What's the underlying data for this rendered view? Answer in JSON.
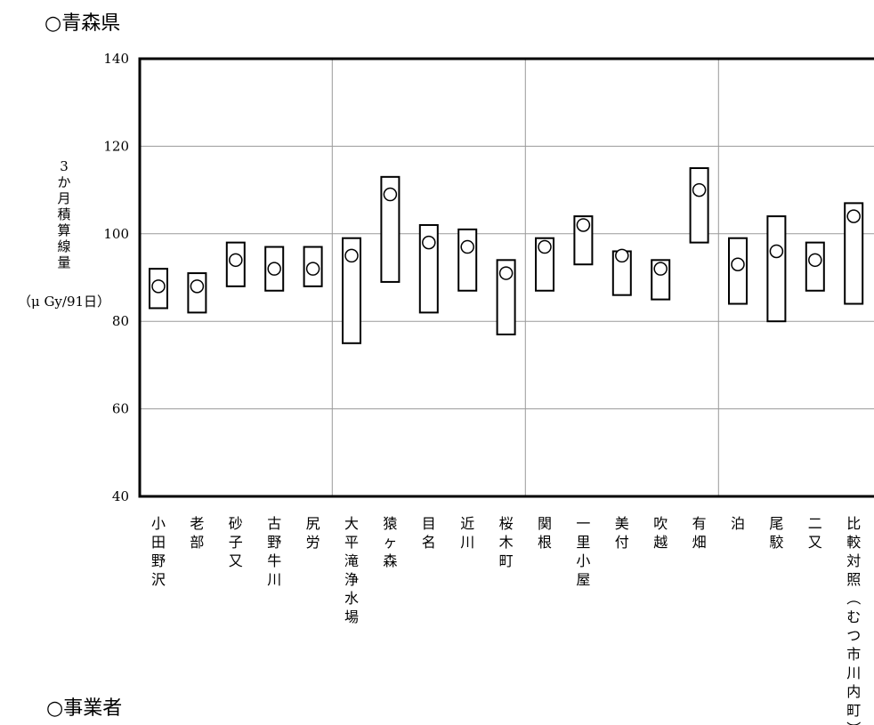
{
  "page": {
    "section_top": "○青森県",
    "section_bottom": "○事業者"
  },
  "chart_data": {
    "type": "range",
    "title": "",
    "ylabel_chars": [
      "3",
      "か",
      "月",
      "積",
      "算",
      "線",
      "量"
    ],
    "ylabel_unit": "（μ Gy/91日）",
    "ylim": [
      40,
      140
    ],
    "yticks": [
      40,
      60,
      80,
      100,
      120,
      140
    ],
    "grid": true,
    "marker": "open-circle",
    "categories": [
      "小田野沢",
      "老部",
      "砂子又",
      "古野牛川",
      "尻労",
      "大平滝浄水場",
      "猿ヶ森",
      "目名",
      "近川",
      "桜木町",
      "関根",
      "一里小屋",
      "美付",
      "吹越",
      "有畑",
      "泊",
      "尾駮",
      "二又",
      "比較対照(むつ市川内町)"
    ],
    "series": [
      {
        "low": [
          83,
          82,
          88,
          87,
          88,
          75,
          89,
          82,
          87,
          77,
          87,
          93,
          86,
          85,
          98,
          84,
          80,
          87,
          84
        ],
        "high": [
          92,
          91,
          98,
          97,
          97,
          99,
          113,
          102,
          101,
          94,
          99,
          104,
          96,
          94,
          115,
          99,
          104,
          98,
          107
        ],
        "value": [
          88,
          88,
          94,
          92,
          92,
          95,
          109,
          98,
          97,
          91,
          97,
          102,
          95,
          92,
          110,
          93,
          96,
          94,
          104
        ]
      }
    ]
  }
}
